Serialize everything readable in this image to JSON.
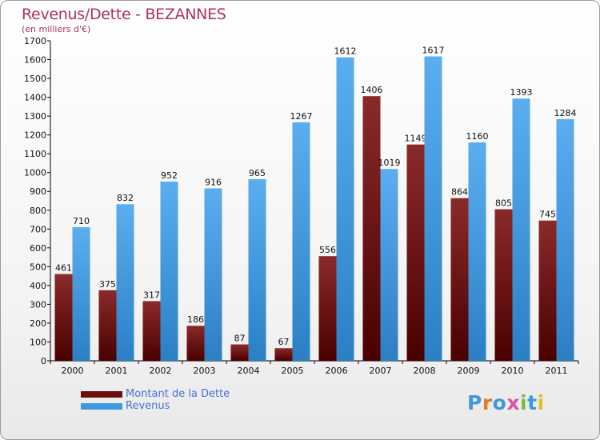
{
  "title": "Revenus/Dette - BEZANNES",
  "subtitle": "(en milliers d'€)",
  "legend": [
    {
      "label": "Montant de la Dette",
      "color": "#6b0e0e"
    },
    {
      "label": "Revenus",
      "color": "#3f97dd"
    }
  ],
  "logo": {
    "text": "Proxiti",
    "colors": [
      "#3f97dd",
      "#e07a23",
      "#3f97dd",
      "#e04fa6",
      "#7fba3a",
      "#3f97dd",
      "#e0c023"
    ]
  },
  "chart_data": {
    "type": "bar",
    "categories": [
      "2000",
      "2001",
      "2002",
      "2003",
      "2004",
      "2005",
      "2006",
      "2007",
      "2008",
      "2009",
      "2010",
      "2011"
    ],
    "series": [
      {
        "name": "Montant de la Dette",
        "color": "#7a1a1a",
        "values": [
          461,
          375,
          317,
          186,
          87,
          67,
          556,
          1406,
          1149,
          864,
          805,
          745
        ]
      },
      {
        "name": "Revenus",
        "color": "#3f97dd",
        "values": [
          710,
          832,
          952,
          916,
          965,
          1267,
          1612,
          1019,
          1617,
          1160,
          1393,
          1284
        ]
      }
    ],
    "ylim": [
      0,
      1700
    ],
    "yticks": [
      0,
      100,
      200,
      300,
      400,
      500,
      600,
      700,
      800,
      900,
      1000,
      1100,
      1200,
      1300,
      1400,
      1500,
      1600,
      1700
    ],
    "grid": false,
    "legend_position": "bottom-left"
  }
}
